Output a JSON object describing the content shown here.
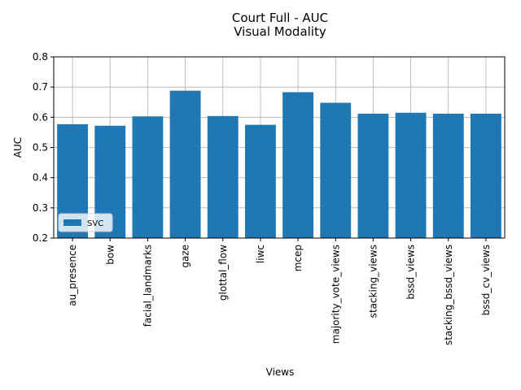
{
  "chart_data": {
    "type": "bar",
    "title": "Court Full - AUC",
    "subtitle": "Visual Modality",
    "xlabel": "Views",
    "ylabel": "AUC",
    "ylim": [
      0.2,
      0.8
    ],
    "yticks": [
      0.2,
      0.3,
      0.4,
      0.5,
      0.6,
      0.7,
      0.8
    ],
    "grid": true,
    "legend_position": "lower-left",
    "categories": [
      "au_presence",
      "bow",
      "facial_landmarks",
      "gaze",
      "glottal_flow",
      "liwc",
      "mcep",
      "majority_vote_views",
      "stacking_views",
      "bssd_views",
      "stacking_bssd_views",
      "bssd_cv_views"
    ],
    "series": [
      {
        "name": "SVC",
        "color": "#1f77b4",
        "values": [
          0.577,
          0.572,
          0.603,
          0.688,
          0.604,
          0.575,
          0.683,
          0.648,
          0.612,
          0.615,
          0.612,
          0.612
        ]
      }
    ]
  }
}
